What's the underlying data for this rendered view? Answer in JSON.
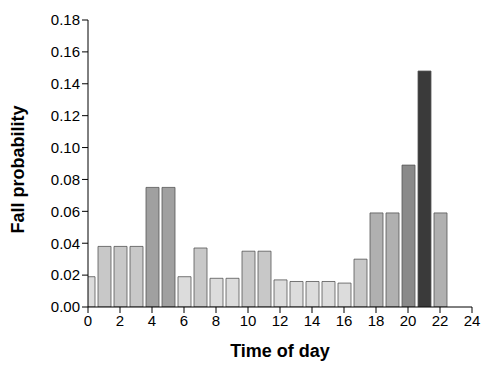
{
  "chart_data": {
    "type": "bar",
    "x_label": "Time of day",
    "y_label": "Fall probability",
    "x": [
      0,
      1,
      2,
      3,
      4,
      5,
      6,
      7,
      8,
      9,
      10,
      11,
      12,
      13,
      14,
      15,
      16,
      17,
      18,
      19,
      20,
      21,
      22
    ],
    "values": [
      0.019,
      0.038,
      0.038,
      0.038,
      0.075,
      0.075,
      0.019,
      0.037,
      0.018,
      0.018,
      0.035,
      0.035,
      0.017,
      0.016,
      0.016,
      0.016,
      0.015,
      0.03,
      0.059,
      0.059,
      0.089,
      0.148,
      0.059
    ],
    "colors": [
      "#dcdcdc",
      "#c8c8c8",
      "#c8c8c8",
      "#c8c8c8",
      "#a0a0a0",
      "#a0a0a0",
      "#dcdcdc",
      "#c8c8c8",
      "#dcdcdc",
      "#dcdcdc",
      "#c8c8c8",
      "#c8c8c8",
      "#dcdcdc",
      "#dcdcdc",
      "#dcdcdc",
      "#dcdcdc",
      "#dcdcdc",
      "#c8c8c8",
      "#b0b0b0",
      "#b0b0b0",
      "#8a8a8a",
      "#3a3a3a",
      "#b0b0b0"
    ],
    "xlim": [
      0,
      24
    ],
    "xticks": [
      0,
      2,
      4,
      6,
      8,
      10,
      12,
      14,
      16,
      18,
      20,
      22,
      24
    ],
    "ylim": [
      0,
      0.18
    ],
    "yticks": [
      {
        "value": 0,
        "label": "0.00"
      },
      {
        "value": 0.02,
        "label": "0.02"
      },
      {
        "value": 0.04,
        "label": "0.04"
      },
      {
        "value": 0.06,
        "label": "0.06"
      },
      {
        "value": 0.08,
        "label": "0.08"
      },
      {
        "value": 0.1,
        "label": "0.10"
      },
      {
        "value": 0.12,
        "label": "0.12"
      },
      {
        "value": 0.14,
        "label": "0.14"
      },
      {
        "value": 0.16,
        "label": "0.16"
      },
      {
        "value": 0.18,
        "label": "0.18"
      }
    ]
  }
}
